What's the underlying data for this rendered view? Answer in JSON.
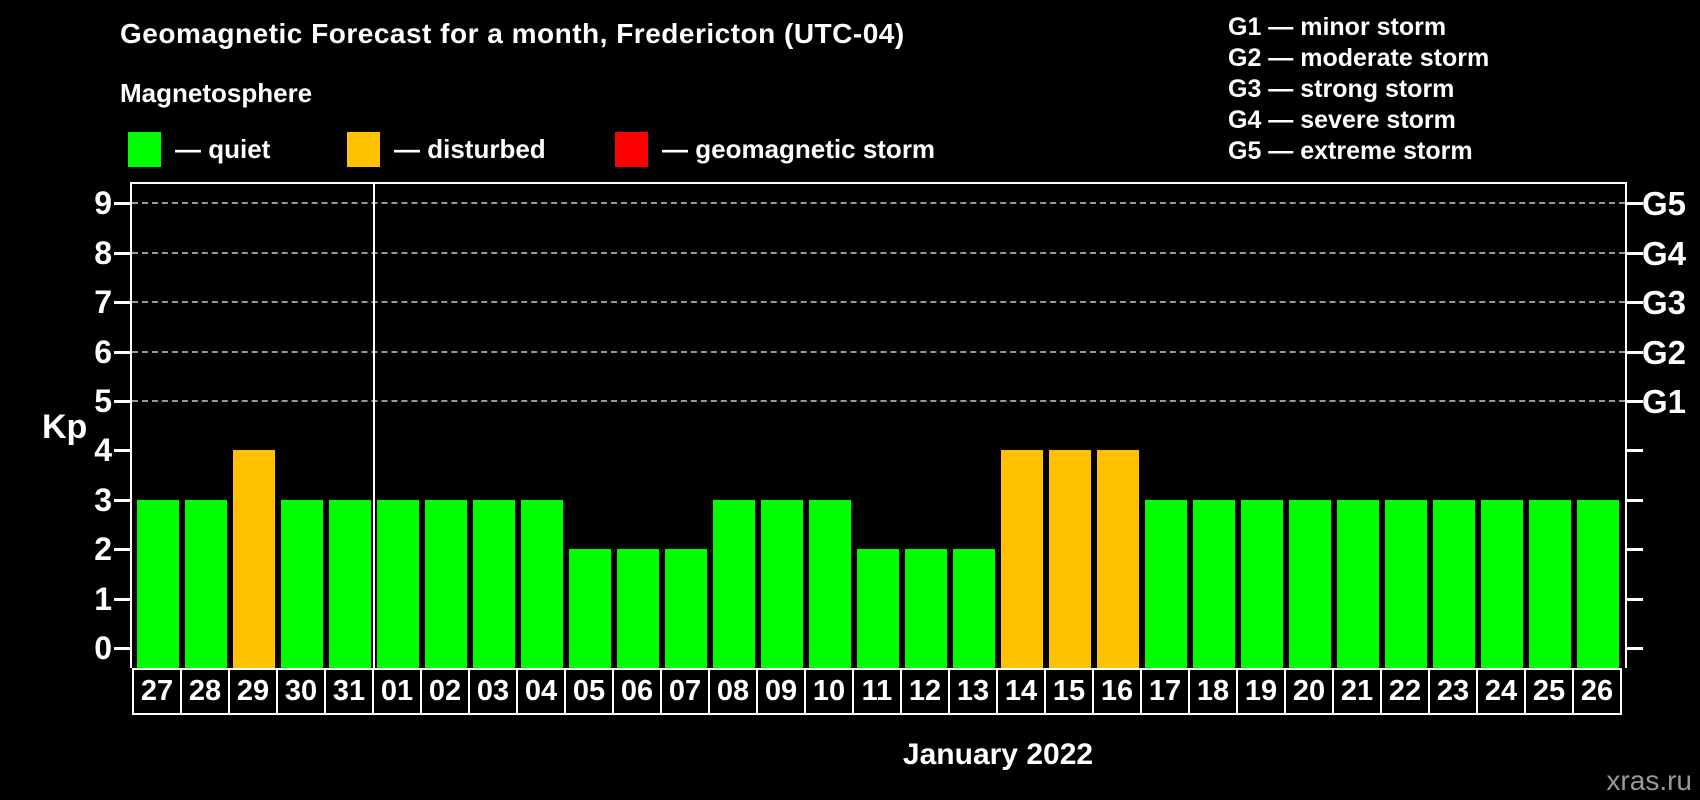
{
  "header": {
    "title": "Geomagnetic Forecast for a month, Fredericton (UTC-04)",
    "subtitle": "Magnetosphere"
  },
  "legend": {
    "items": [
      {
        "name": "quiet",
        "label": "— quiet",
        "color": "#00FF00"
      },
      {
        "name": "disturbed",
        "label": "— disturbed",
        "color": "#FFC000"
      },
      {
        "name": "geomagnetic-storm",
        "label": "— geomagnetic storm",
        "color": "#FF0000"
      }
    ]
  },
  "g_legend": {
    "items": [
      "G1 — minor storm",
      "G2 — moderate storm",
      "G3 — strong storm",
      "G4 — severe storm",
      "G5 — extreme storm"
    ]
  },
  "chart_data": {
    "type": "bar",
    "title": "Geomagnetic Forecast for a month, Fredericton (UTC-04)",
    "categories": [
      "27",
      "28",
      "29",
      "30",
      "31",
      "01",
      "02",
      "03",
      "04",
      "05",
      "06",
      "07",
      "08",
      "09",
      "10",
      "11",
      "12",
      "13",
      "14",
      "15",
      "16",
      "17",
      "18",
      "19",
      "20",
      "21",
      "22",
      "23",
      "24",
      "25",
      "26"
    ],
    "values": [
      3,
      3,
      4,
      3,
      3,
      3,
      3,
      3,
      3,
      2,
      2,
      2,
      3,
      3,
      3,
      2,
      2,
      2,
      4,
      4,
      4,
      3,
      3,
      3,
      3,
      3,
      3,
      3,
      3,
      3,
      3
    ],
    "statuses": [
      "quiet",
      "quiet",
      "disturbed",
      "quiet",
      "quiet",
      "quiet",
      "quiet",
      "quiet",
      "quiet",
      "quiet",
      "quiet",
      "quiet",
      "quiet",
      "quiet",
      "quiet",
      "quiet",
      "quiet",
      "quiet",
      "disturbed",
      "disturbed",
      "disturbed",
      "quiet",
      "quiet",
      "quiet",
      "quiet",
      "quiet",
      "quiet",
      "quiet",
      "quiet",
      "quiet",
      "quiet"
    ],
    "colors": {
      "quiet": "#00FF00",
      "disturbed": "#FFC000",
      "storm": "#FF0000"
    },
    "ylabel": "Kp",
    "ylim": [
      0,
      9
    ],
    "yticks": [
      0,
      1,
      2,
      3,
      4,
      5,
      6,
      7,
      8,
      9
    ],
    "grid_levels": [
      5,
      6,
      7,
      8,
      9
    ],
    "grid_on": true,
    "right_axis": [
      {
        "kp": 5,
        "label": "G1"
      },
      {
        "kp": 6,
        "label": "G2"
      },
      {
        "kp": 7,
        "label": "G3"
      },
      {
        "kp": 8,
        "label": "G4"
      },
      {
        "kp": 9,
        "label": "G5"
      }
    ],
    "xlabel": "January 2022",
    "month_separator_after": "31",
    "legend_position": "top-left"
  },
  "watermark": "xras.ru"
}
